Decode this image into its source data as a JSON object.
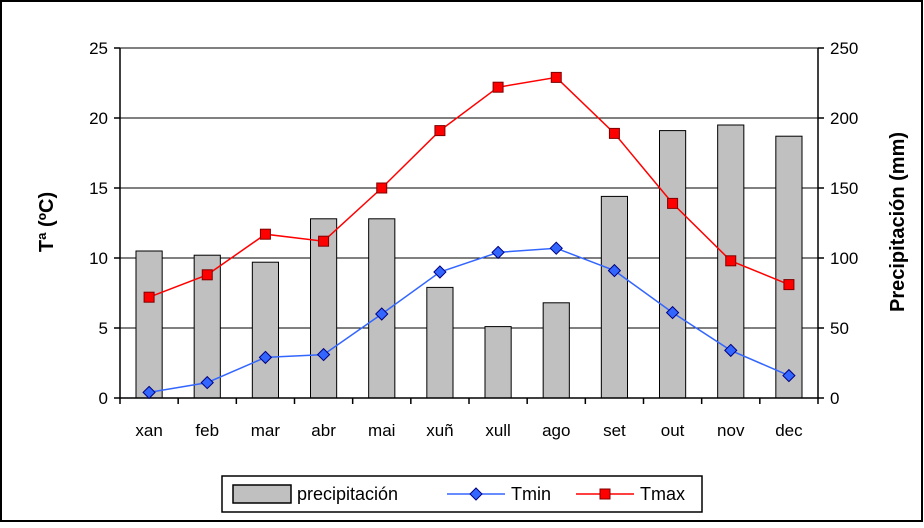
{
  "chart_data": {
    "type": "bar",
    "categories": [
      "xan",
      "feb",
      "mar",
      "abr",
      "mai",
      "xuñ",
      "xull",
      "ago",
      "set",
      "out",
      "nov",
      "dec"
    ],
    "y_left": {
      "label": "Tª (ºC)",
      "min": 0,
      "max": 25,
      "ticks": [
        "0",
        "5",
        "10",
        "15",
        "20",
        "25"
      ]
    },
    "y_right": {
      "label": "Precipitación (mm)",
      "min": 0,
      "max": 250,
      "ticks": [
        "0",
        "50",
        "100",
        "150",
        "200",
        "250"
      ]
    },
    "series": [
      {
        "name": "precipitación",
        "type": "bar",
        "axis": "right",
        "color": "#c0c0c0",
        "values": [
          105,
          102,
          97,
          128,
          128,
          79,
          51,
          68,
          144,
          191,
          195,
          187
        ]
      },
      {
        "name": "Tmin",
        "type": "line",
        "axis": "left",
        "color": "#3366ff",
        "marker": "diamond",
        "values": [
          0.4,
          1.1,
          2.9,
          3.1,
          6.0,
          9.0,
          10.4,
          10.7,
          9.1,
          6.1,
          3.4,
          1.6
        ]
      },
      {
        "name": "Tmax",
        "type": "line",
        "axis": "left",
        "color": "#ff0000",
        "marker": "square",
        "values": [
          7.2,
          8.8,
          11.7,
          11.2,
          15.0,
          19.1,
          22.2,
          22.9,
          18.9,
          13.9,
          9.8,
          8.1
        ]
      }
    ],
    "legend": {
      "position": "bottom"
    },
    "grid": {
      "horizontal": true,
      "vertical": false
    }
  }
}
